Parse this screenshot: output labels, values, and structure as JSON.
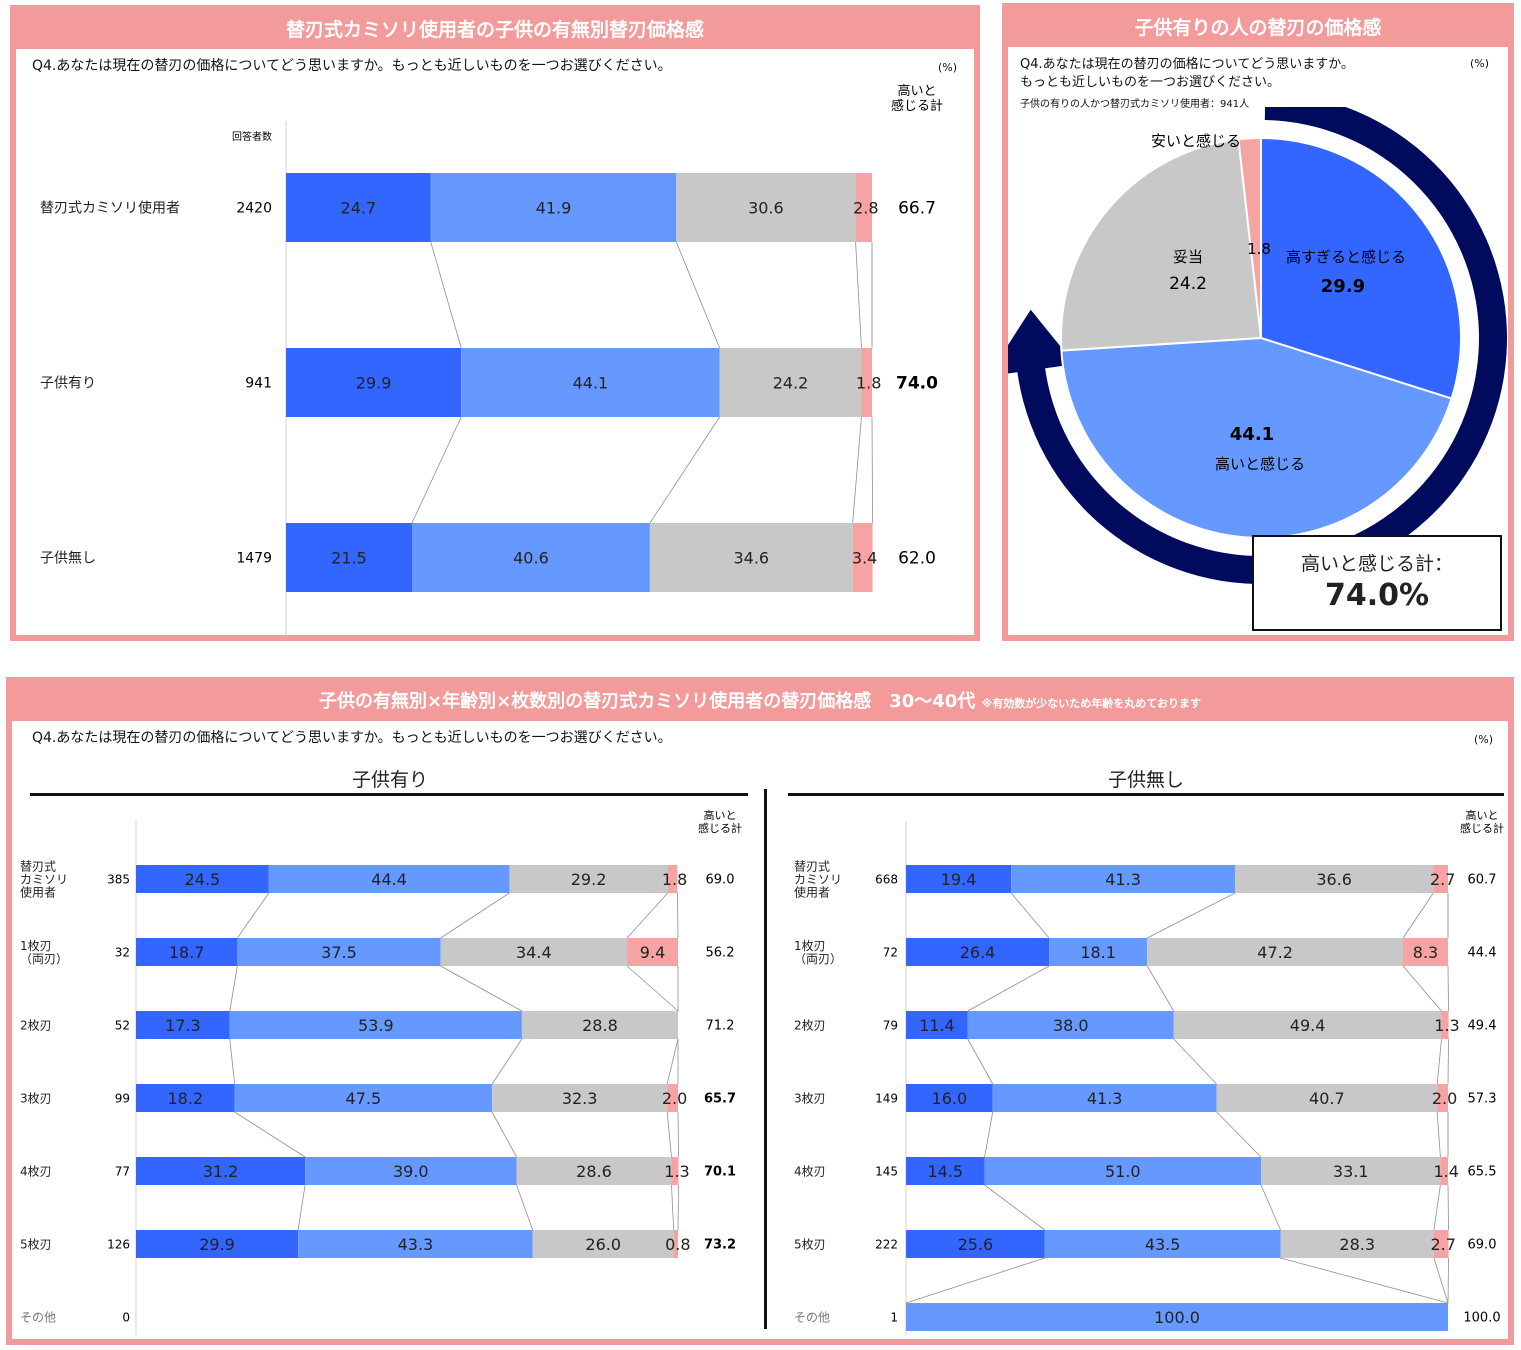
{
  "panel1": {
    "header": "替刃式カミソリ使用者の子供の有無別替刃価格感",
    "question": "Q4.あなたは現在の替刃の価格についてどう思いますか。もっとも近しいものを一つお選びください。",
    "unit": "(%)",
    "total_header_line1": "高いと",
    "total_header_line2": "感じる計",
    "n_header": "回答者数"
  },
  "panel2": {
    "header": "子供有りの人の替刃の価格感",
    "question_line1": "Q4.あなたは現在の替刃の価格についてどう思いますか。",
    "question_line2": "もっとも近しいものを一つお選びください。",
    "unit": "(%)",
    "base": "子供の有りの人かつ替刃式カミソリ使用者：941人",
    "total_label": "高いと感じる計：",
    "total_value": "74.0%"
  },
  "panel3": {
    "header": "子供の有無別×年齢別×枚数別の替刃式カミソリ使用者の替刃価格感　30～40代",
    "header_note": "※有効数が少ないため年齢を丸めております",
    "question": "Q4.あなたは現在の替刃の価格についてどう思いますか。もっとも近しいものを一つお選びください。",
    "unit": "(%)",
    "left_title": "子供有り",
    "right_title": "子供無し",
    "total_header_line1": "高いと",
    "total_header_line2": "感じる計"
  },
  "colors": {
    "dark_blue": "#3366ff",
    "light_blue": "#6699ff",
    "gray": "#c8c8c8",
    "pink": "#f5a3a3",
    "navy": "#000b5e",
    "frame": "#f39a9a"
  },
  "chart_data": [
    {
      "type": "bar",
      "stacked": true,
      "orientation": "horizontal",
      "title": "替刃式カミソリ使用者の子供の有無別替刃価格感",
      "categories": [
        "替刃式カミソリ使用者",
        "子供有り",
        "子供無し"
      ],
      "n": [
        "2420",
        "941",
        "1479"
      ],
      "series": [
        {
          "name": "高すぎると感じる",
          "values": [
            24.7,
            29.9,
            21.5
          ]
        },
        {
          "name": "高いと感じる",
          "values": [
            41.9,
            44.1,
            40.6
          ]
        },
        {
          "name": "妥当",
          "values": [
            30.6,
            24.2,
            34.6
          ]
        },
        {
          "name": "安いと感じる",
          "values": [
            2.8,
            1.8,
            3.4
          ]
        }
      ],
      "total_high": [
        "66.7",
        "74.0",
        "62.0"
      ],
      "total_bold": [
        false,
        true,
        false
      ],
      "xlim": [
        0,
        100
      ]
    },
    {
      "type": "pie",
      "title": "子供有りの人の替刃の価格感",
      "labels": [
        "高すぎると感じる",
        "高いと感じる",
        "妥当",
        "安いと感じる"
      ],
      "values": [
        29.9,
        44.1,
        24.2,
        1.8
      ],
      "value_labels": [
        "29.9",
        "44.1",
        "24.2",
        "1.8"
      ]
    },
    {
      "type": "bar",
      "stacked": true,
      "orientation": "horizontal",
      "title": "子供有り",
      "categories": [
        "替刃式カミソリ使用者",
        "1枚刃（両刃）",
        "2枚刃",
        "3枚刃",
        "4枚刃",
        "5枚刃",
        "その他"
      ],
      "category_lines": [
        [
          "替刃式",
          "カミソリ",
          "使用者"
        ],
        [
          "1枚刃",
          "（両刃）"
        ],
        [
          "2枚刃"
        ],
        [
          "3枚刃"
        ],
        [
          "4枚刃"
        ],
        [
          "5枚刃"
        ],
        [
          "その他"
        ]
      ],
      "n": [
        "385",
        "32",
        "52",
        "99",
        "77",
        "126",
        "0"
      ],
      "series": [
        {
          "name": "高すぎると感じる",
          "values": [
            24.5,
            18.7,
            17.3,
            18.2,
            31.2,
            29.9,
            null
          ]
        },
        {
          "name": "高いと感じる",
          "values": [
            44.4,
            37.5,
            53.9,
            47.5,
            39.0,
            43.3,
            null
          ]
        },
        {
          "name": "妥当",
          "values": [
            29.2,
            34.4,
            28.8,
            32.3,
            28.6,
            26.0,
            null
          ]
        },
        {
          "name": "安いと感じる",
          "values": [
            1.8,
            9.4,
            0,
            2.0,
            1.3,
            0.8,
            null
          ]
        }
      ],
      "total_high": [
        "69.0",
        "56.2",
        "71.2",
        "65.7",
        "70.1",
        "73.2",
        ""
      ],
      "total_bold": [
        false,
        false,
        false,
        true,
        true,
        true,
        false
      ],
      "xlim": [
        0,
        100
      ]
    },
    {
      "type": "bar",
      "stacked": true,
      "orientation": "horizontal",
      "title": "子供無し",
      "categories": [
        "替刃式カミソリ使用者",
        "1枚刃（両刃）",
        "2枚刃",
        "3枚刃",
        "4枚刃",
        "5枚刃",
        "その他"
      ],
      "category_lines": [
        [
          "替刃式",
          "カミソリ",
          "使用者"
        ],
        [
          "1枚刃",
          "（両刃）"
        ],
        [
          "2枚刃"
        ],
        [
          "3枚刃"
        ],
        [
          "4枚刃"
        ],
        [
          "5枚刃"
        ],
        [
          "その他"
        ]
      ],
      "n": [
        "668",
        "72",
        "79",
        "149",
        "145",
        "222",
        "1"
      ],
      "series": [
        {
          "name": "高すぎると感じる",
          "values": [
            19.4,
            26.4,
            11.4,
            16.0,
            14.5,
            25.6,
            0
          ]
        },
        {
          "name": "高いと感じる",
          "values": [
            41.3,
            18.1,
            38.0,
            41.3,
            51.0,
            43.5,
            100.0
          ]
        },
        {
          "name": "妥当",
          "values": [
            36.6,
            47.2,
            49.4,
            40.7,
            33.1,
            28.3,
            0
          ]
        },
        {
          "name": "安いと感じる",
          "values": [
            2.7,
            8.3,
            1.3,
            2.0,
            1.4,
            2.7,
            0
          ]
        }
      ],
      "total_high": [
        "60.7",
        "44.4",
        "49.4",
        "57.3",
        "65.5",
        "69.0",
        "100.0"
      ],
      "total_bold": [
        false,
        false,
        false,
        false,
        false,
        false,
        false
      ],
      "xlim": [
        0,
        100
      ]
    }
  ]
}
